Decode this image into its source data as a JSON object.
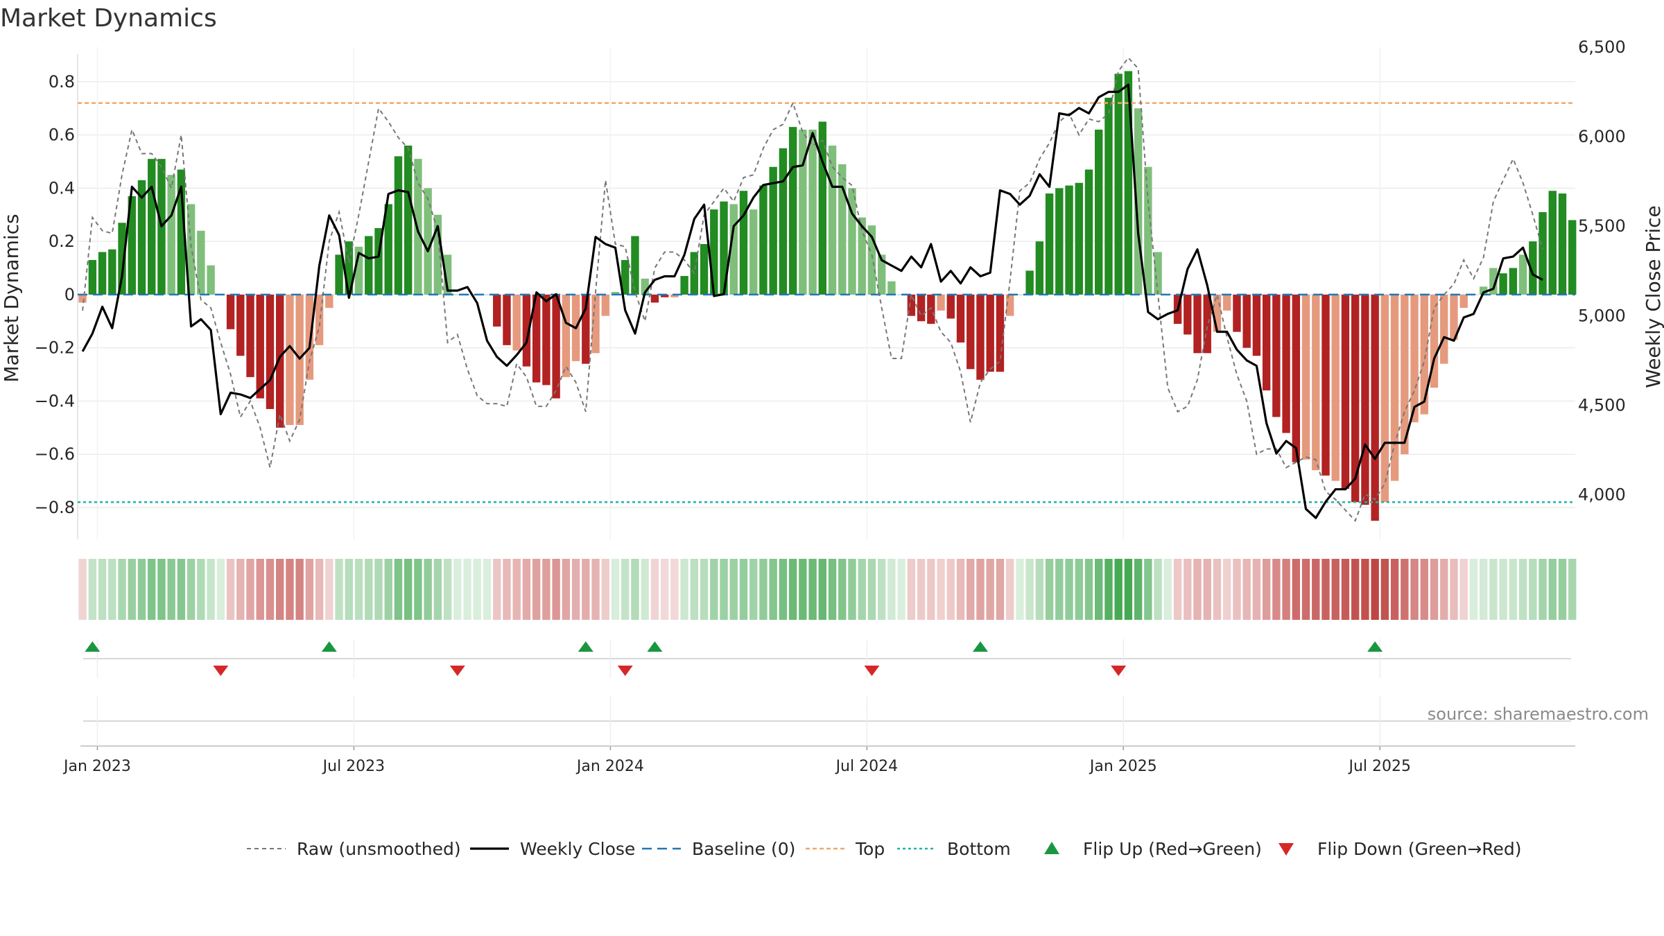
{
  "colors": {
    "strong_green": "#228b22",
    "light_green": "#7fbf7b",
    "strong_red": "#b22222",
    "light_red": "#e59a7e",
    "top_line": "#f0a868",
    "bottom_line": "#20b2aa",
    "baseline": "#1f77b4",
    "raw": "#777777",
    "close": "#000000",
    "flip_up": "#1a9641",
    "flip_down": "#d62728"
  },
  "chart_data": {
    "type": "bar",
    "title": "Market Dynamics",
    "ylabel": "Market Dynamics",
    "y2label": "Weekly Close Price",
    "ylim": [
      -0.92,
      0.93
    ],
    "y2lim": [
      3750,
      6500
    ],
    "yticks": [
      "0.8",
      "0.6",
      "0.4",
      "0.2",
      "0",
      "−0.2",
      "−0.4",
      "−0.6",
      "−0.8"
    ],
    "ytick_values": [
      0.8,
      0.6,
      0.4,
      0.2,
      0,
      -0.2,
      -0.4,
      -0.6,
      -0.8
    ],
    "y2ticks": [
      "6,500",
      "6,000",
      "5,500",
      "5,000",
      "4,500",
      "4,000"
    ],
    "y2tick_values": [
      6500,
      6000,
      5500,
      5000,
      4500,
      4000
    ],
    "xticks": [
      "Jan 2023",
      "Jul 2023",
      "Jan 2024",
      "Jul 2024",
      "Jan 2025",
      "Jul 2025"
    ],
    "xtick_weeks": [
      1.5,
      27.5,
      53.5,
      79.5,
      105.5,
      131.5
    ],
    "x_start": "2022-12-26",
    "x_unit": "week",
    "top_level": 0.72,
    "bottom_level": -0.78,
    "grid": true,
    "legend_position": "bottom",
    "bars": [
      -0.03,
      0.13,
      0.16,
      0.17,
      0.27,
      0.37,
      0.43,
      0.51,
      0.51,
      0.45,
      0.47,
      0.34,
      0.24,
      0.11,
      0.0,
      -0.13,
      -0.23,
      -0.31,
      -0.39,
      -0.43,
      -0.5,
      -0.49,
      -0.49,
      -0.32,
      -0.19,
      -0.05,
      0.15,
      0.2,
      0.18,
      0.22,
      0.25,
      0.34,
      0.52,
      0.56,
      0.51,
      0.4,
      0.3,
      0.15,
      0.0,
      0.0,
      0.0,
      0.0,
      -0.12,
      -0.19,
      -0.21,
      -0.27,
      -0.33,
      -0.34,
      -0.39,
      -0.31,
      -0.25,
      -0.26,
      -0.22,
      -0.08,
      0.01,
      0.13,
      0.22,
      0.06,
      -0.03,
      -0.01,
      -0.01,
      0.07,
      0.16,
      0.19,
      0.32,
      0.35,
      0.34,
      0.39,
      0.32,
      0.41,
      0.48,
      0.55,
      0.63,
      0.62,
      0.62,
      0.65,
      0.56,
      0.49,
      0.4,
      0.29,
      0.26,
      0.15,
      0.05,
      0.0,
      -0.08,
      -0.1,
      -0.11,
      -0.06,
      -0.09,
      -0.18,
      -0.28,
      -0.32,
      -0.29,
      -0.29,
      -0.08,
      0.0,
      0.09,
      0.2,
      0.38,
      0.4,
      0.41,
      0.42,
      0.47,
      0.62,
      0.74,
      0.83,
      0.84,
      0.7,
      0.48,
      0.16,
      0.0,
      -0.11,
      -0.15,
      -0.22,
      -0.22,
      -0.14,
      -0.06,
      -0.14,
      -0.2,
      -0.23,
      -0.36,
      -0.46,
      -0.52,
      -0.63,
      -0.62,
      -0.66,
      -0.68,
      -0.7,
      -0.73,
      -0.78,
      -0.79,
      -0.85,
      -0.78,
      -0.7,
      -0.6,
      -0.48,
      -0.45,
      -0.35,
      -0.26,
      -0.17,
      -0.05,
      0.0,
      0.03,
      0.1,
      0.08,
      0.1,
      0.15,
      0.2,
      0.31,
      0.39,
      0.38,
      0.28
    ],
    "bar_strength": [
      "weak",
      "strong",
      "strong",
      "strong",
      "strong",
      "strong",
      "strong",
      "strong",
      "strong",
      "weak",
      "strong",
      "weak",
      "weak",
      "weak",
      "weak",
      "strong",
      "strong",
      "strong",
      "strong",
      "strong",
      "strong",
      "weak",
      "weak",
      "weak",
      "weak",
      "weak",
      "strong",
      "strong",
      "weak",
      "strong",
      "strong",
      "strong",
      "strong",
      "strong",
      "weak",
      "weak",
      "weak",
      "weak",
      "weak",
      "weak",
      "weak",
      "weak",
      "strong",
      "strong",
      "weak",
      "strong",
      "strong",
      "strong",
      "strong",
      "weak",
      "weak",
      "strong",
      "weak",
      "weak",
      "weak",
      "strong",
      "strong",
      "weak",
      "strong",
      "strong",
      "weak",
      "strong",
      "strong",
      "strong",
      "strong",
      "strong",
      "weak",
      "strong",
      "weak",
      "strong",
      "strong",
      "strong",
      "strong",
      "weak",
      "weak",
      "strong",
      "weak",
      "weak",
      "weak",
      "weak",
      "weak",
      "weak",
      "weak",
      "weak",
      "strong",
      "strong",
      "strong",
      "weak",
      "strong",
      "strong",
      "strong",
      "strong",
      "strong",
      "strong",
      "weak",
      "weak",
      "strong",
      "strong",
      "strong",
      "strong",
      "strong",
      "strong",
      "strong",
      "strong",
      "strong",
      "strong",
      "strong",
      "weak",
      "weak",
      "weak",
      "weak",
      "strong",
      "strong",
      "strong",
      "strong",
      "weak",
      "weak",
      "strong",
      "strong",
      "strong",
      "strong",
      "strong",
      "strong",
      "strong",
      "weak",
      "weak",
      "strong",
      "weak",
      "strong",
      "strong",
      "strong",
      "strong",
      "weak",
      "weak",
      "weak",
      "weak",
      "weak",
      "weak",
      "weak",
      "weak",
      "weak",
      "weak",
      "weak",
      "weak",
      "strong",
      "strong",
      "weak",
      "strong",
      "strong",
      "strong",
      "strong",
      "strong",
      "weak"
    ],
    "raw": [
      -0.06,
      0.29,
      0.24,
      0.23,
      0.45,
      0.62,
      0.53,
      0.53,
      0.48,
      0.4,
      0.6,
      0.18,
      -0.02,
      -0.05,
      -0.18,
      -0.3,
      -0.46,
      -0.4,
      -0.5,
      -0.65,
      -0.45,
      -0.55,
      -0.47,
      -0.25,
      -0.12,
      0.2,
      0.31,
      0.12,
      0.3,
      0.5,
      0.7,
      0.65,
      0.59,
      0.55,
      0.42,
      0.36,
      0.24,
      -0.18,
      -0.15,
      -0.28,
      -0.38,
      -0.41,
      -0.41,
      -0.42,
      -0.26,
      -0.31,
      -0.42,
      -0.42,
      -0.36,
      -0.27,
      -0.33,
      -0.44,
      0.01,
      0.43,
      0.19,
      0.18,
      0.01,
      -0.1,
      0.1,
      0.16,
      0.16,
      0.13,
      0.08,
      0.3,
      0.35,
      0.4,
      0.35,
      0.44,
      0.45,
      0.55,
      0.62,
      0.64,
      0.72,
      0.61,
      0.56,
      0.58,
      0.48,
      0.44,
      0.41,
      0.24,
      0.15,
      -0.05,
      -0.24,
      -0.24,
      0.0,
      -0.08,
      -0.05,
      -0.14,
      -0.18,
      -0.29,
      -0.48,
      -0.33,
      -0.28,
      -0.25,
      0.05,
      0.39,
      0.42,
      0.51,
      0.57,
      0.65,
      0.68,
      0.6,
      0.66,
      0.65,
      0.68,
      0.84,
      0.89,
      0.85,
      0.35,
      0.0,
      -0.35,
      -0.44,
      -0.42,
      -0.32,
      -0.12,
      0.0,
      -0.16,
      -0.3,
      -0.4,
      -0.6,
      -0.58,
      -0.58,
      -0.65,
      -0.63,
      -0.61,
      -0.62,
      -0.74,
      -0.77,
      -0.81,
      -0.85,
      -0.75,
      -0.77,
      -0.71,
      -0.56,
      -0.44,
      -0.36,
      -0.25,
      -0.05,
      0.0,
      0.04,
      0.13,
      0.06,
      0.14,
      0.35,
      0.43,
      0.51,
      0.42,
      0.3,
      0.17
    ],
    "close": [
      4800,
      4900,
      5050,
      4930,
      5220,
      5720,
      5660,
      5720,
      5500,
      5560,
      5720,
      4940,
      4980,
      4920,
      4450,
      4570,
      4560,
      4540,
      4590,
      4640,
      4770,
      4830,
      4760,
      4820,
      5280,
      5560,
      5450,
      5100,
      5350,
      5320,
      5330,
      5680,
      5700,
      5690,
      5470,
      5360,
      5500,
      5140,
      5140,
      5160,
      5070,
      4860,
      4770,
      4720,
      4780,
      4850,
      5130,
      5080,
      5120,
      4960,
      4930,
      5040,
      5440,
      5400,
      5380,
      5030,
      4900,
      5130,
      5200,
      5220,
      5220,
      5340,
      5540,
      5620,
      5110,
      5120,
      5500,
      5560,
      5660,
      5730,
      5740,
      5750,
      5830,
      5840,
      6020,
      5860,
      5720,
      5720,
      5570,
      5500,
      5440,
      5310,
      5280,
      5250,
      5330,
      5270,
      5400,
      5190,
      5250,
      5180,
      5270,
      5220,
      5240,
      5700,
      5680,
      5620,
      5670,
      5790,
      5720,
      6130,
      6120,
      6160,
      6130,
      6220,
      6250,
      6250,
      6290,
      5460,
      5020,
      4980,
      5010,
      5030,
      5260,
      5370,
      5170,
      4910,
      4910,
      4810,
      4750,
      4720,
      4400,
      4230,
      4300,
      4260,
      3920,
      3870,
      3960,
      4030,
      4030,
      4090,
      4280,
      4200,
      4290,
      4290,
      4290,
      4490,
      4520,
      4760,
      4880,
      4860,
      4990,
      5010,
      5130,
      5150,
      5320,
      5330,
      5380,
      5230,
      5200
    ],
    "flip_up_weeks": [
      1,
      25,
      51,
      58,
      91,
      131
    ],
    "flip_down_weeks": [
      14,
      38,
      55,
      80,
      105
    ],
    "legend": [
      "Raw (unsmoothed)",
      "Weekly Close",
      "Baseline (0)",
      "Top",
      "Bottom",
      "Flip Up (Red→Green)",
      "Flip Down (Green→Red)"
    ]
  },
  "source_text": "source: sharemaestro.com"
}
